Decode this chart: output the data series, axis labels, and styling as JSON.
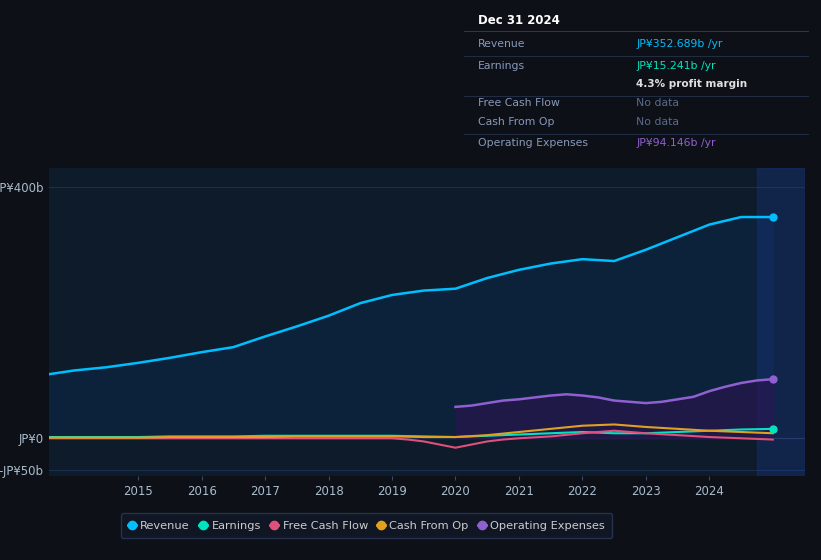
{
  "background_color": "#0d1117",
  "plot_bg_color": "#0d1b2a",
  "ylim": [
    -60,
    430
  ],
  "xlim_start": 2013.6,
  "xlim_end": 2025.5,
  "xticks": [
    2015,
    2016,
    2017,
    2018,
    2019,
    2020,
    2021,
    2022,
    2023,
    2024
  ],
  "ytick_labels": [
    "JP¥400b",
    "JP¥0",
    "-JP¥50b"
  ],
  "ytick_values": [
    400,
    0,
    -50
  ],
  "legend": [
    {
      "label": "Revenue",
      "color": "#00bfff"
    },
    {
      "label": "Earnings",
      "color": "#00e5c0"
    },
    {
      "label": "Free Cash Flow",
      "color": "#e0507a"
    },
    {
      "label": "Cash From Op",
      "color": "#e0a020"
    },
    {
      "label": "Operating Expenses",
      "color": "#9060d0"
    }
  ],
  "revenue": {
    "x": [
      2013.6,
      2014.0,
      2014.5,
      2015.0,
      2015.5,
      2016.0,
      2016.5,
      2017.0,
      2017.5,
      2018.0,
      2018.5,
      2019.0,
      2019.5,
      2020.0,
      2020.5,
      2021.0,
      2021.5,
      2022.0,
      2022.5,
      2023.0,
      2023.5,
      2024.0,
      2024.5,
      2025.0
    ],
    "y": [
      102,
      108,
      113,
      120,
      128,
      137,
      145,
      162,
      178,
      195,
      215,
      228,
      235,
      238,
      255,
      268,
      278,
      285,
      282,
      300,
      320,
      340,
      352,
      352
    ]
  },
  "earnings": {
    "x": [
      2013.6,
      2014.0,
      2014.5,
      2015.0,
      2015.5,
      2016.0,
      2016.5,
      2017.0,
      2017.5,
      2018.0,
      2018.5,
      2019.0,
      2019.5,
      2020.0,
      2020.5,
      2021.0,
      2021.5,
      2022.0,
      2022.5,
      2023.0,
      2023.5,
      2024.0,
      2024.5,
      2025.0
    ],
    "y": [
      2,
      2,
      2,
      2,
      3,
      3,
      3,
      4,
      4,
      4,
      4,
      4,
      3,
      2,
      4,
      6,
      8,
      10,
      8,
      8,
      10,
      12,
      14,
      15
    ]
  },
  "free_cash_flow": {
    "x": [
      2013.6,
      2014.0,
      2014.5,
      2015.0,
      2015.5,
      2016.0,
      2016.5,
      2017.0,
      2017.5,
      2018.0,
      2018.5,
      2019.0,
      2019.25,
      2019.5,
      2019.75,
      2020.0,
      2020.25,
      2020.5,
      2020.75,
      2021.0,
      2021.5,
      2022.0,
      2022.5,
      2023.0,
      2023.5,
      2024.0,
      2024.5,
      2025.0
    ],
    "y": [
      0,
      0,
      0,
      0,
      0,
      0,
      0,
      0,
      0,
      0,
      0,
      0,
      -2,
      -5,
      -10,
      -15,
      -10,
      -5,
      -2,
      0,
      3,
      8,
      12,
      8,
      5,
      2,
      0,
      -2
    ]
  },
  "cash_from_op": {
    "x": [
      2013.6,
      2014.0,
      2014.5,
      2015.0,
      2015.5,
      2016.0,
      2016.5,
      2017.0,
      2017.5,
      2018.0,
      2018.5,
      2019.0,
      2019.5,
      2020.0,
      2020.5,
      2021.0,
      2021.5,
      2022.0,
      2022.5,
      2023.0,
      2023.5,
      2024.0,
      2024.5,
      2025.0
    ],
    "y": [
      1,
      1,
      1,
      1,
      2,
      2,
      2,
      2,
      3,
      3,
      3,
      3,
      2,
      2,
      5,
      10,
      15,
      20,
      22,
      18,
      15,
      12,
      10,
      8
    ]
  },
  "op_expenses": {
    "x": [
      2020.0,
      2020.25,
      2020.5,
      2020.75,
      2021.0,
      2021.25,
      2021.5,
      2021.75,
      2022.0,
      2022.25,
      2022.5,
      2022.75,
      2023.0,
      2023.25,
      2023.5,
      2023.75,
      2024.0,
      2024.25,
      2024.5,
      2024.75,
      2025.0
    ],
    "y": [
      50,
      52,
      56,
      60,
      62,
      65,
      68,
      70,
      68,
      65,
      60,
      58,
      56,
      58,
      62,
      66,
      75,
      82,
      88,
      92,
      94
    ]
  },
  "tooltip": {
    "bg_color": "#111827",
    "border_color": "#2a3a5a",
    "title": "Dec 31 2024",
    "rows": [
      {
        "label": "Revenue",
        "value": "JP¥352.689b /yr",
        "value_color": "#00bfff"
      },
      {
        "label": "Earnings",
        "value": "JP¥15.241b /yr",
        "value_color": "#00e5c0"
      },
      {
        "label": "",
        "value": "4.3% profit margin",
        "value_color": "#e0e0e0"
      },
      {
        "label": "Free Cash Flow",
        "value": "No data",
        "value_color": "#5a6a8a"
      },
      {
        "label": "Cash From Op",
        "value": "No data",
        "value_color": "#5a6a8a"
      },
      {
        "label": "Operating Expenses",
        "value": "JP¥94.146b /yr",
        "value_color": "#9060d0"
      }
    ]
  }
}
